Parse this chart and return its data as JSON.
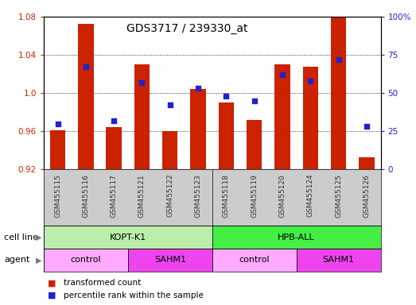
{
  "title": "GDS3717 / 239330_at",
  "samples": [
    "GSM455115",
    "GSM455116",
    "GSM455117",
    "GSM455121",
    "GSM455122",
    "GSM455123",
    "GSM455118",
    "GSM455119",
    "GSM455120",
    "GSM455124",
    "GSM455125",
    "GSM455126"
  ],
  "transformed_counts": [
    0.961,
    1.073,
    0.964,
    1.03,
    0.96,
    1.004,
    0.99,
    0.972,
    1.03,
    1.028,
    1.08,
    0.933
  ],
  "percentile_ranks": [
    30,
    67,
    32,
    57,
    42,
    53,
    48,
    45,
    62,
    58,
    72,
    28
  ],
  "ylim_left": [
    0.92,
    1.08
  ],
  "ylim_right": [
    0,
    100
  ],
  "yticks_left": [
    0.92,
    0.96,
    1.0,
    1.04,
    1.08
  ],
  "yticks_right": [
    0,
    25,
    50,
    75,
    100
  ],
  "bar_color": "#cc2200",
  "dot_color": "#2222cc",
  "cell_line_labels": [
    "KOPT-K1",
    "HPB-ALL"
  ],
  "cell_line_spans": [
    [
      0,
      5
    ],
    [
      6,
      11
    ]
  ],
  "cell_line_color_left": "#bbeeaa",
  "cell_line_color_right": "#44ee44",
  "agent_groups": [
    {
      "label": "control",
      "span": [
        0,
        2
      ],
      "color": "#ffaaff"
    },
    {
      "label": "SAHM1",
      "span": [
        3,
        5
      ],
      "color": "#ee44ee"
    },
    {
      "label": "control",
      "span": [
        6,
        8
      ],
      "color": "#ffaaff"
    },
    {
      "label": "SAHM1",
      "span": [
        9,
        11
      ],
      "color": "#ee44ee"
    }
  ],
  "title_fontsize": 10,
  "tick_fontsize": 7.5,
  "label_fontsize": 8,
  "sample_label_fontsize": 6.5,
  "row_label_fontsize": 8
}
